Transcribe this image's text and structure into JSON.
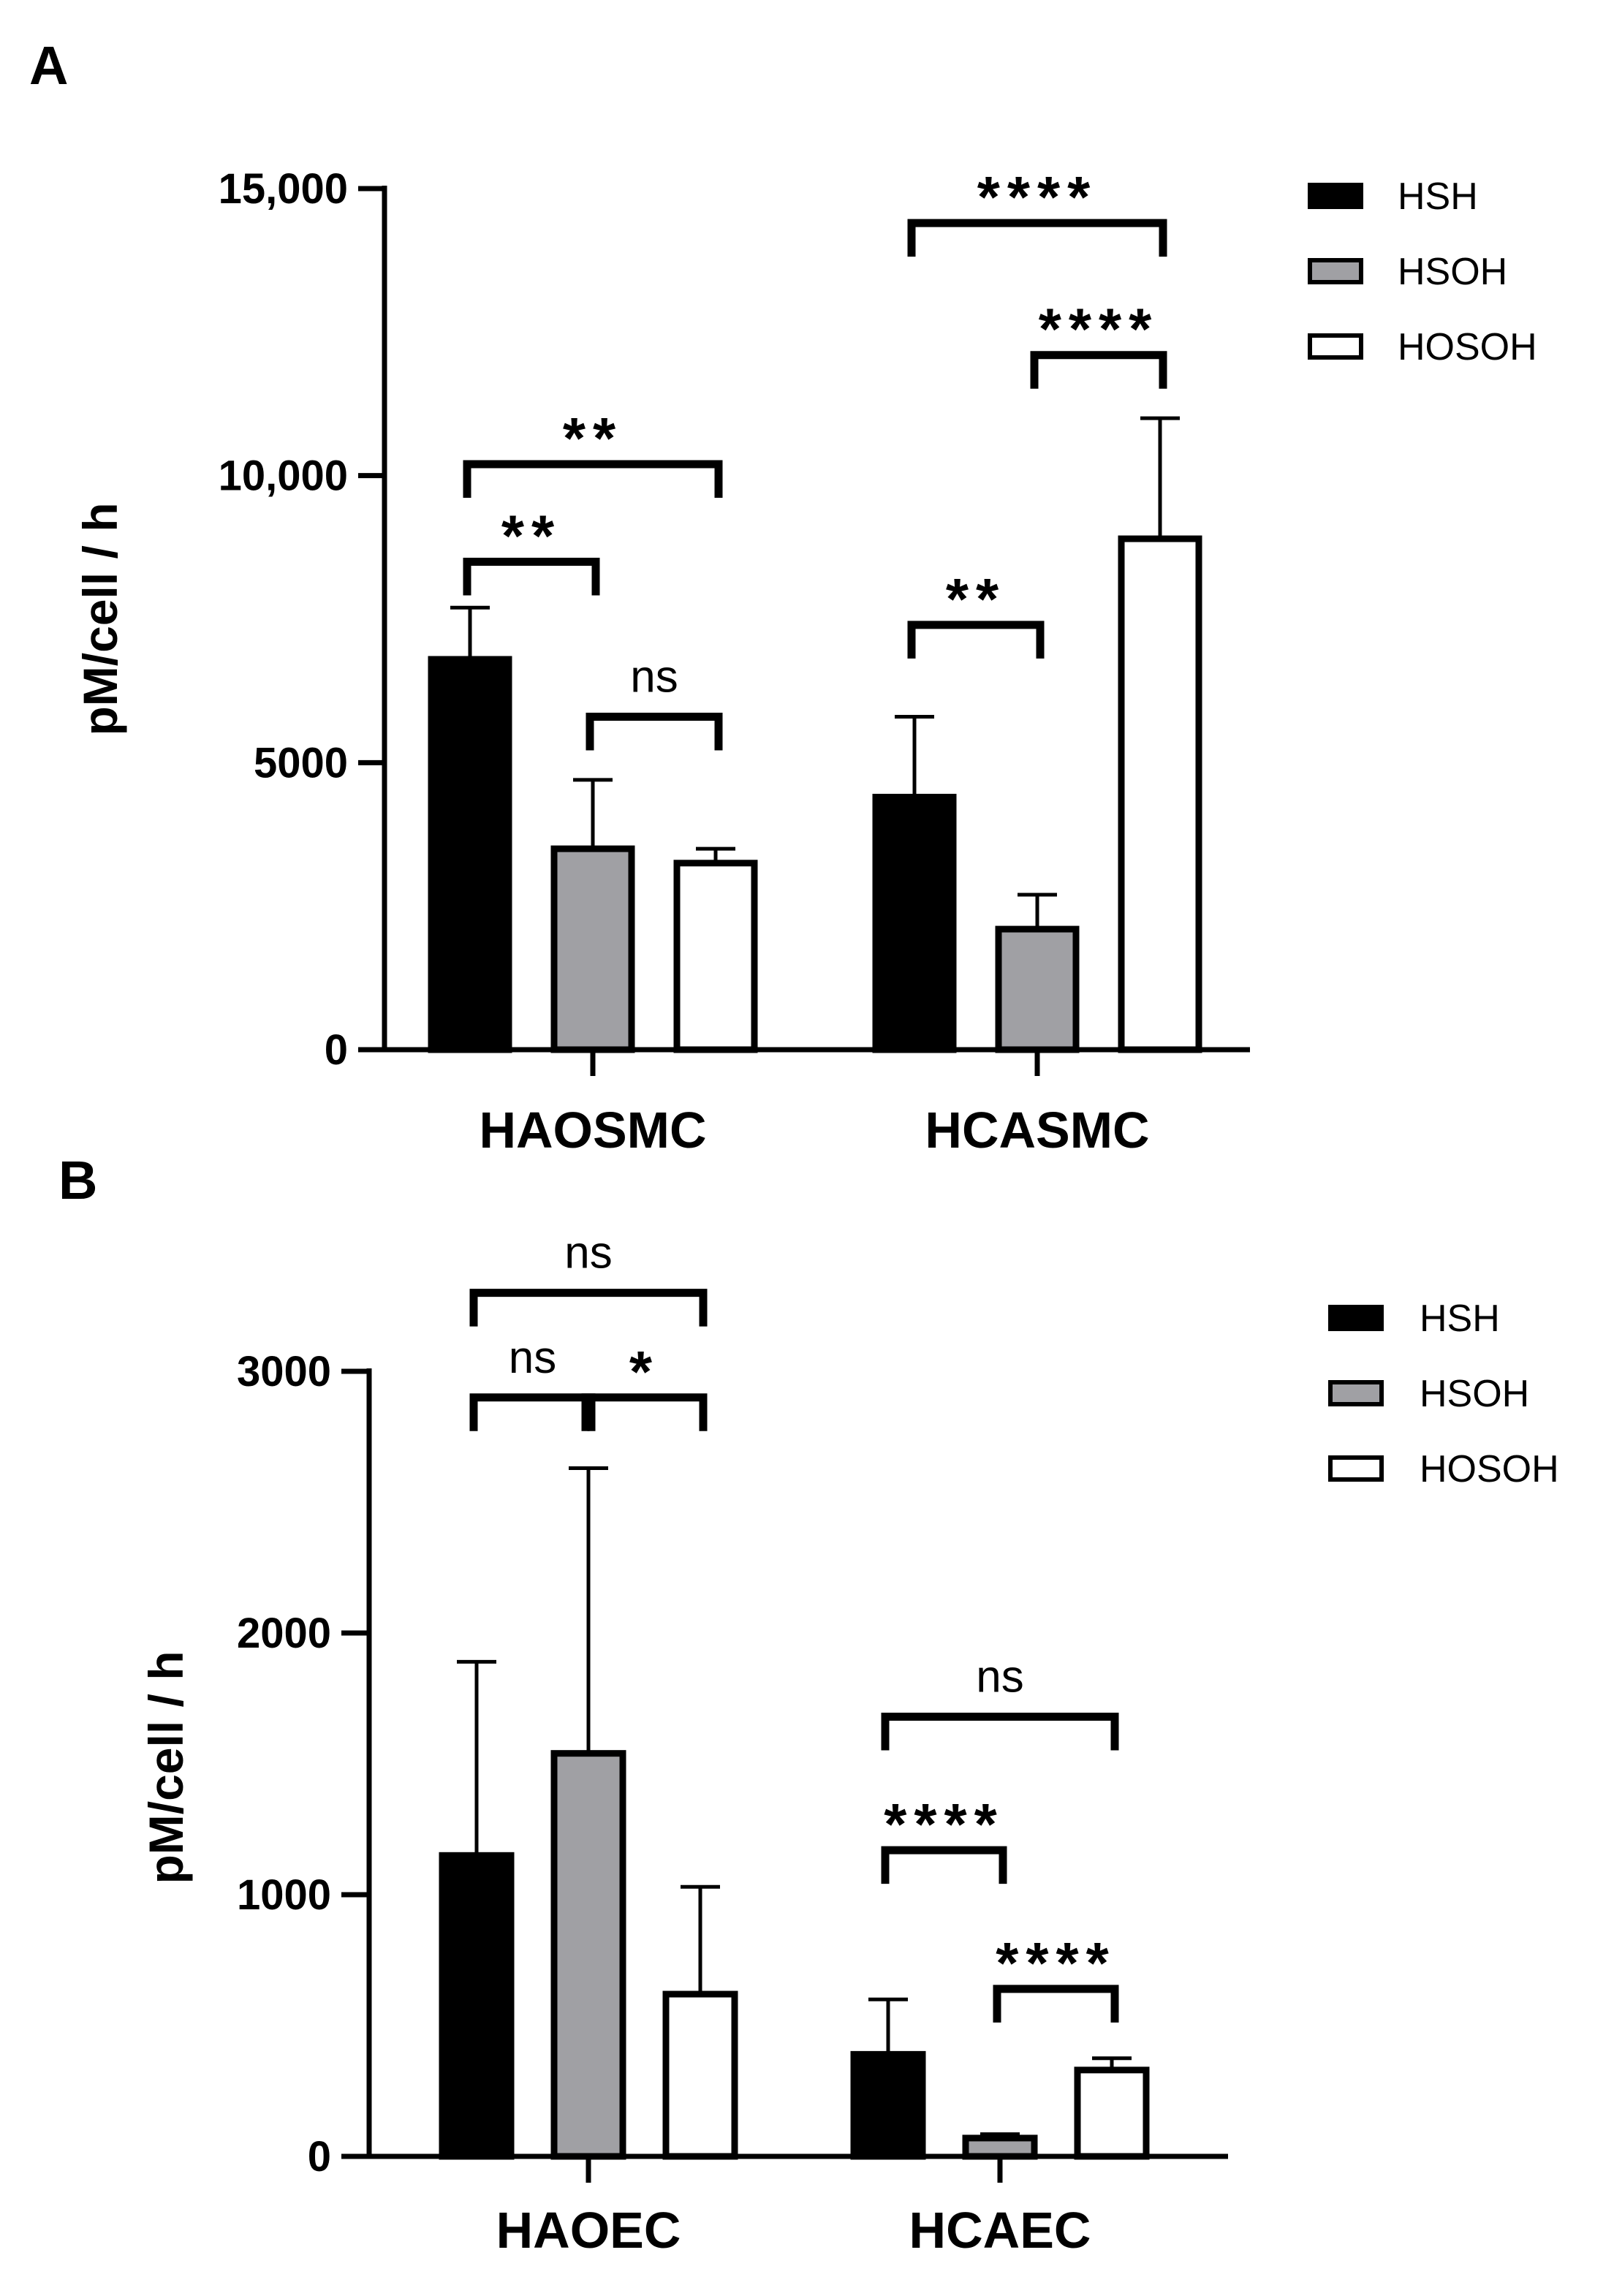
{
  "chart_data": [
    {
      "type": "bar",
      "panel": "A",
      "ylabel": "pM/cell / h",
      "ylim": [
        0,
        15000
      ],
      "yticks": [
        0,
        5000,
        10000,
        15000
      ],
      "ytick_labels": [
        "0",
        "5000",
        "10,000",
        "15,000"
      ],
      "categories": [
        "HAOSMC",
        "HCASMC"
      ],
      "legend_position": "top-right",
      "series": [
        {
          "name": "HSH",
          "fill": "#000000",
          "values": [
            6800,
            4400
          ],
          "errors": [
            900,
            1400
          ]
        },
        {
          "name": "HSOH",
          "fill": "#a0a0a4",
          "values": [
            3500,
            2100
          ],
          "errors": [
            1200,
            600
          ]
        },
        {
          "name": "HOSOH",
          "fill": "#ffffff",
          "values": [
            3250,
            8900
          ],
          "errors": [
            250,
            2100
          ]
        }
      ],
      "comparisons": [
        {
          "group": 0,
          "a": 0,
          "b": 2,
          "label": "**",
          "y": 10200
        },
        {
          "group": 0,
          "a": 0,
          "b": 1,
          "label": "**",
          "y": 8500
        },
        {
          "group": 0,
          "a": 1,
          "b": 2,
          "label": "ns",
          "y": 5800
        },
        {
          "group": 1,
          "a": 0,
          "b": 2,
          "label": "****",
          "y": 14400
        },
        {
          "group": 1,
          "a": 1,
          "b": 2,
          "label": "****",
          "y": 12100
        },
        {
          "group": 1,
          "a": 0,
          "b": 1,
          "label": "**",
          "y": 7400
        }
      ]
    },
    {
      "type": "bar",
      "panel": "B",
      "ylabel": "pM/cell / h",
      "ylim": [
        0,
        3000
      ],
      "yticks": [
        0,
        1000,
        2000,
        3000
      ],
      "ytick_labels": [
        "0",
        "1000",
        "2000",
        "3000"
      ],
      "categories": [
        "HAOEC",
        "HCAEC"
      ],
      "legend_position": "top-right",
      "series": [
        {
          "name": "HSH",
          "fill": "#000000",
          "values": [
            1150,
            390
          ],
          "errors": [
            740,
            210
          ]
        },
        {
          "name": "HSOH",
          "fill": "#a0a0a4",
          "values": [
            1540,
            70
          ],
          "errors": [
            1090,
            15
          ]
        },
        {
          "name": "HOSOH",
          "fill": "#ffffff",
          "values": [
            620,
            330
          ],
          "errors": [
            410,
            45
          ]
        }
      ],
      "comparisons": [
        {
          "group": 0,
          "a": 0,
          "b": 2,
          "label": "ns",
          "y": 3300
        },
        {
          "group": 0,
          "a": 0,
          "b": 1,
          "label": "ns",
          "y": 2900
        },
        {
          "group": 0,
          "a": 1,
          "b": 2,
          "label": "*",
          "y": 2900
        },
        {
          "group": 1,
          "a": 0,
          "b": 2,
          "label": "ns",
          "y": 1680
        },
        {
          "group": 1,
          "a": 0,
          "b": 1,
          "label": "****",
          "y": 1170
        },
        {
          "group": 1,
          "a": 1,
          "b": 2,
          "label": "****",
          "y": 640
        }
      ]
    }
  ]
}
